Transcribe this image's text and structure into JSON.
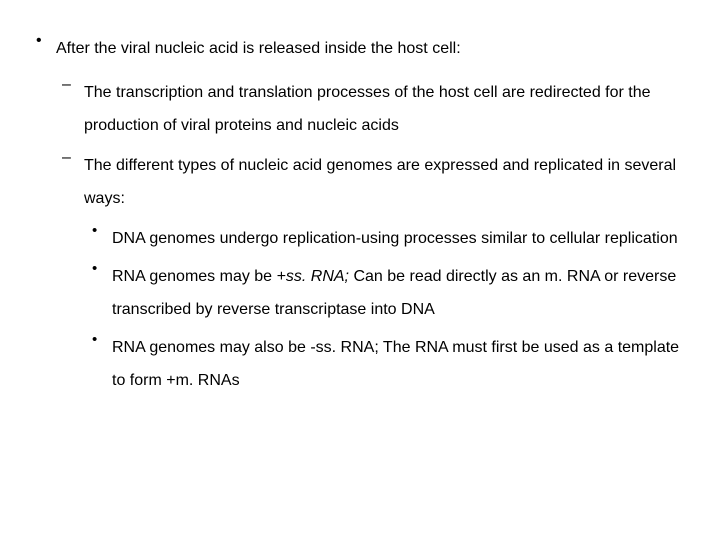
{
  "typography": {
    "font_family": "Arial",
    "base_fontsize_pt": 12,
    "line_height": 2.1,
    "text_color": "#000000",
    "background_color": "#ffffff"
  },
  "l1": {
    "bullet": "•",
    "items": [
      {
        "text": "After the viral nucleic acid is released inside the host cell:"
      }
    ]
  },
  "l2": {
    "bullet": "–",
    "items": [
      {
        "text": "The transcription and translation processes of the host cell are redirected for the production of viral proteins and nucleic acids"
      },
      {
        "text": "The different types of nucleic acid genomes are expressed and replicated in several ways:"
      }
    ]
  },
  "l3": {
    "bullet": "•",
    "items": [
      {
        "text": "DNA genomes undergo replication-using processes similar to cellular replication"
      },
      {
        "pre": "RNA genomes may be ",
        "em": "+ss. RNA;",
        "post": " Can be read directly as an m. RNA or reverse transcribed by reverse transcriptase into DNA"
      },
      {
        "text": "RNA genomes may also be -ss. RNA; The RNA must first be used as a template to form +m. RNAs"
      }
    ]
  }
}
